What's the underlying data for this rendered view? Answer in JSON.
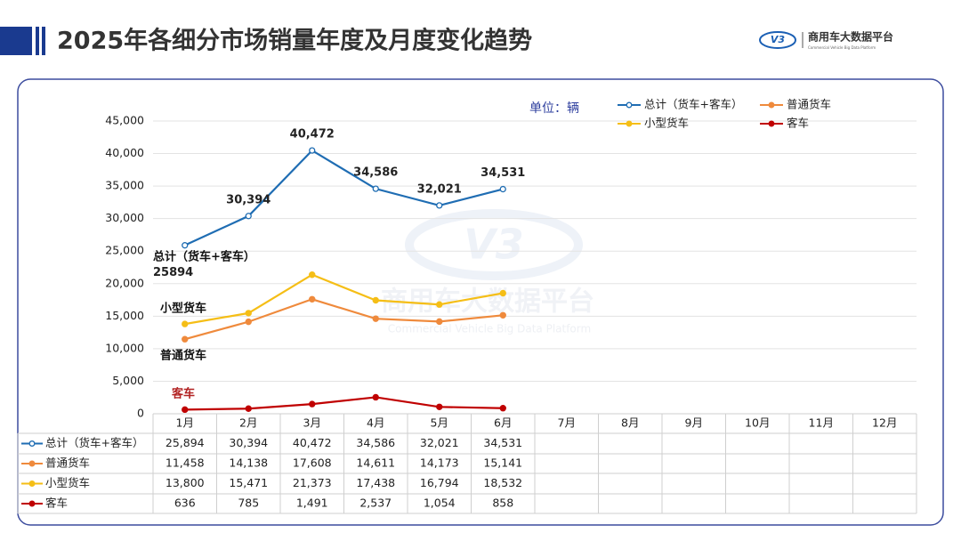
{
  "header": {
    "title": "2025年各细分市场销量年度及月度变化趋势",
    "logo_mark": "V3",
    "logo_text": "商用车大数据平台",
    "logo_subtext": "Commercial Vehicle Big Data Platform"
  },
  "chart_data": {
    "type": "line",
    "unit": "单位：辆",
    "watermark": {
      "mark": "V3",
      "text": "商用车大数据平台",
      "subtext": "Commercial Vehicle Big Data Platform"
    },
    "categories": [
      "1月",
      "2月",
      "3月",
      "4月",
      "5月",
      "6月",
      "7月",
      "8月",
      "9月",
      "10月",
      "11月",
      "12月"
    ],
    "series": [
      {
        "name": "总计（货车+客车）",
        "color": "#1f6db3",
        "hollow": true,
        "values": [
          25894,
          30394,
          40472,
          34586,
          32021,
          34531,
          null,
          null,
          null,
          null,
          null,
          null
        ],
        "value_labels": [
          "25894",
          "30,394",
          "40,472",
          "34,586",
          "32,021",
          "34,531",
          null,
          null,
          null,
          null,
          null,
          null
        ],
        "table_labels": [
          "25,894",
          "30,394",
          "40,472",
          "34,586",
          "32,021",
          "34,531",
          null,
          null,
          null,
          null,
          null,
          null
        ]
      },
      {
        "name": "普通货车",
        "color": "#ef8a3c",
        "hollow": false,
        "values": [
          11458,
          14138,
          17608,
          14611,
          14173,
          15141,
          null,
          null,
          null,
          null,
          null,
          null
        ],
        "table_labels": [
          "11,458",
          "14,138",
          "17,608",
          "14,611",
          "14,173",
          "15,141",
          null,
          null,
          null,
          null,
          null,
          null
        ]
      },
      {
        "name": "小型货车",
        "color": "#f5be16",
        "hollow": false,
        "values": [
          13800,
          15471,
          21373,
          17438,
          16794,
          18532,
          null,
          null,
          null,
          null,
          null,
          null
        ],
        "table_labels": [
          "13,800",
          "15,471",
          "21,373",
          "17,438",
          "16,794",
          "18,532",
          null,
          null,
          null,
          null,
          null,
          null
        ]
      },
      {
        "name": "客车",
        "color": "#c00000",
        "hollow": false,
        "values": [
          636,
          785,
          1491,
          2537,
          1054,
          858,
          null,
          null,
          null,
          null,
          null,
          null
        ],
        "table_labels": [
          "636",
          "785",
          "1,491",
          "2,537",
          "1,054",
          "858",
          null,
          null,
          null,
          null,
          null,
          null
        ]
      }
    ],
    "annotations": [
      "总计（货车+客车）",
      "小型货车",
      "普通货车",
      "客车"
    ],
    "ylim": [
      0,
      45000
    ],
    "yticks": [
      0,
      {
        "value": 5000,
        "label": "5,000"
      },
      {
        "value": 10000,
        "label": "10,000"
      },
      {
        "value": 15000,
        "label": "15,000"
      },
      {
        "value": 20000,
        "label": "20,000"
      },
      {
        "value": 25000,
        "label": "25,000"
      },
      {
        "value": 30000,
        "label": "30,000"
      },
      {
        "value": 35000,
        "label": "35,000"
      },
      {
        "value": 40000,
        "label": "40,000"
      },
      {
        "value": 45000,
        "label": "45,000"
      }
    ],
    "grid": true
  }
}
